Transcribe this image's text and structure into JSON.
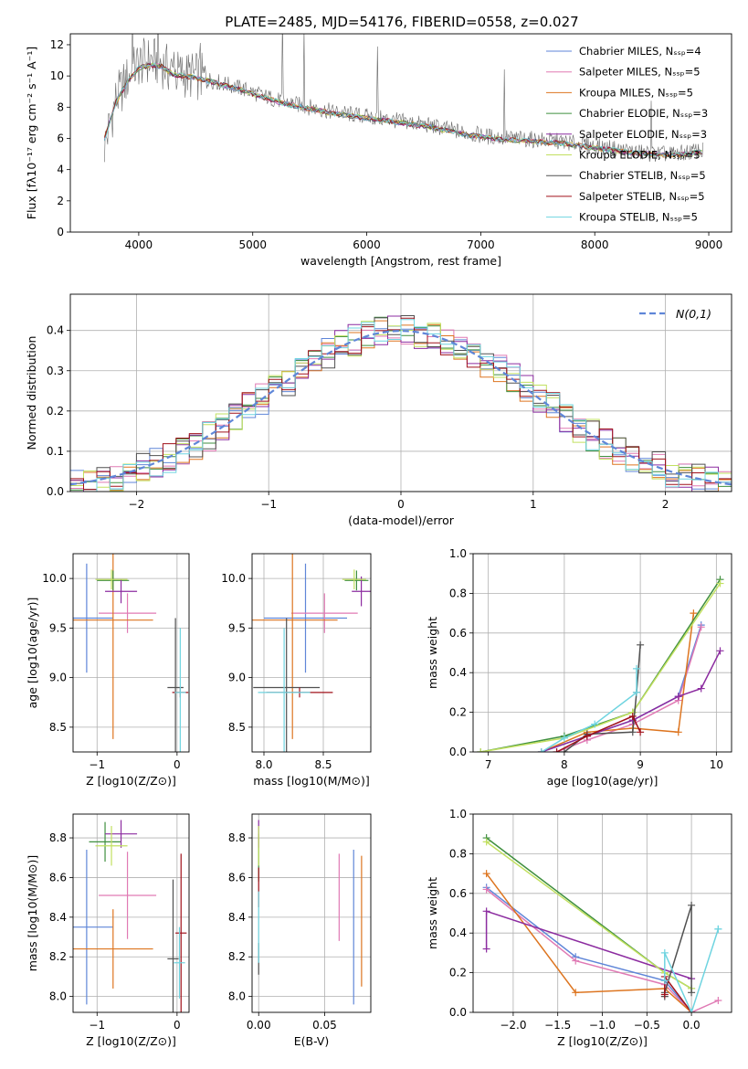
{
  "figure_title": "PLATE=2485, MJD=54176, FIBERID=0558, z=0.027",
  "colors": {
    "chabrier_miles": "#5f86d8",
    "salpeter_miles": "#e07ab4",
    "kroupa_miles": "#dd7520",
    "chabrier_elodie": "#3f8f3f",
    "salpeter_elodie": "#8c2ca0",
    "kroupa_elodie": "#c2e060",
    "chabrier_stelib": "#505050",
    "salpeter_stelib": "#a0101a",
    "kroupa_stelib": "#6fd4e0",
    "normal_curve": "#5f86d8",
    "grid": "#b0b0b0"
  },
  "chart_data": [
    {
      "id": "spectrum",
      "type": "line",
      "xlabel": "wavelength [Angstrom, rest frame]",
      "ylabel": "Flux [fλ10⁻¹⁷ erg cm⁻² s⁻¹ A⁻¹]",
      "xlim": [
        3400,
        9200
      ],
      "ylim": [
        0,
        12.7
      ],
      "xticks": [
        4000,
        5000,
        6000,
        7000,
        8000,
        9000
      ],
      "yticks": [
        0,
        2,
        4,
        6,
        8,
        10,
        12
      ],
      "grid": false,
      "legend_position": "top-right",
      "legend": [
        "Chabrier MILES, N_SSP=4",
        "Salpeter MILES, N_SSP=5",
        "Kroupa MILES, N_SSP=5",
        "Chabrier ELODIE, N_SSP=3",
        "Salpeter ELODIE, N_SSP=3",
        "Kroupa ELODIE, N_SSP=3",
        "Chabrier STELIB, N_SSP=5",
        "Salpeter STELIB, N_SSP=5",
        "Kroupa STELIB, N_SSP=5"
      ],
      "data_curve": {
        "x": [
          3700,
          3800,
          3900,
          4000,
          4100,
          4200,
          4300,
          4500,
          4700,
          4900,
          5100,
          5300,
          5500,
          5700,
          5900,
          6100,
          6300,
          6500,
          6700,
          6900,
          7100,
          7300,
          7500,
          7700,
          7900,
          8100,
          8300,
          8500,
          8700,
          8900
        ],
        "y": [
          5.5,
          8.5,
          9.8,
          10.8,
          11.0,
          10.8,
          10.2,
          10.0,
          9.6,
          9.2,
          8.7,
          8.3,
          8.0,
          7.7,
          7.5,
          7.3,
          7.1,
          6.9,
          6.6,
          6.3,
          6.1,
          6.0,
          5.9,
          5.8,
          5.6,
          5.4,
          5.2,
          5.0,
          5.0,
          5.2
        ]
      },
      "model_curve": {
        "x": [
          3700,
          3800,
          3900,
          4000,
          4100,
          4200,
          4300,
          4500,
          4700,
          4900,
          5100,
          5300,
          5500,
          5700,
          5900,
          6100,
          6300,
          6500,
          6700,
          6900,
          7100,
          7300,
          7500,
          7700,
          7900,
          8100,
          8300,
          8500,
          8700,
          8900
        ],
        "y": [
          6.0,
          8.3,
          9.6,
          10.5,
          10.7,
          10.6,
          10.1,
          9.9,
          9.5,
          9.1,
          8.6,
          8.2,
          7.9,
          7.6,
          7.4,
          7.2,
          7.0,
          6.8,
          6.5,
          6.2,
          6.0,
          5.9,
          5.8,
          5.7,
          5.5,
          5.3,
          5.1,
          5.0,
          4.9,
          5.1
        ]
      }
    },
    {
      "id": "residuals",
      "type": "line",
      "xlabel": "(data-model)/error",
      "ylabel": "Normed distribution",
      "xlim": [
        -2.5,
        2.5
      ],
      "ylim": [
        0,
        0.49
      ],
      "xticks": [
        -2,
        -1,
        0,
        1,
        2
      ],
      "yticks": [
        0.0,
        0.1,
        0.2,
        0.3,
        0.4
      ],
      "grid": true,
      "legend_position": "top-right",
      "legend": [
        "N(0,1)"
      ]
    },
    {
      "id": "age_vs_Z",
      "type": "scatter",
      "xlabel": "Z [log10(Z/Z⊙)]",
      "ylabel": "age  [log10(age/yr)]",
      "xlim": [
        -1.3,
        0.15
      ],
      "ylim": [
        8.25,
        10.25
      ],
      "xticks": [
        -1,
        0
      ],
      "yticks": [
        8.5,
        9.0,
        9.5,
        10.0
      ],
      "grid": true,
      "points": [
        {
          "x": -1.13,
          "y": 9.6,
          "xerr": 0.33,
          "yerr": 0.55,
          "c": "chabrier_miles"
        },
        {
          "x": -0.62,
          "y": 9.65,
          "xerr": 0.36,
          "yerr": 0.2,
          "c": "salpeter_miles"
        },
        {
          "x": -0.8,
          "y": 9.58,
          "xerr": 0.5,
          "yerr": 1.2,
          "c": "kroupa_miles"
        },
        {
          "x": -0.8,
          "y": 9.98,
          "xerr": 0.2,
          "yerr": 0.1,
          "c": "chabrier_elodie"
        },
        {
          "x": -0.7,
          "y": 9.87,
          "xerr": 0.2,
          "yerr": 0.12,
          "c": "salpeter_elodie"
        },
        {
          "x": -0.82,
          "y": 9.99,
          "xerr": 0.2,
          "yerr": 0.1,
          "c": "kroupa_elodie"
        },
        {
          "x": -0.02,
          "y": 8.9,
          "xerr": 0.1,
          "yerr": 0.7,
          "c": "chabrier_stelib"
        },
        {
          "x": 0.04,
          "y": 8.85,
          "xerr": 0.1,
          "yerr": 0.05,
          "c": "salpeter_stelib"
        },
        {
          "x": 0.04,
          "y": 8.85,
          "xerr": 0.07,
          "yerr": 0.65,
          "c": "kroupa_stelib"
        }
      ]
    },
    {
      "id": "age_vs_mass",
      "type": "scatter",
      "xlabel": "mass [log10(M/M⊙)]",
      "ylabel": "",
      "xlim": [
        7.9,
        8.9
      ],
      "ylim": [
        8.25,
        10.25
      ],
      "xticks": [
        8.0,
        8.5
      ],
      "yticks": [
        8.5,
        9.0,
        9.5,
        10.0
      ],
      "grid": true,
      "points": [
        {
          "x": 8.35,
          "y": 9.6,
          "xerr": 0.35,
          "yerr": 0.55,
          "c": "chabrier_miles"
        },
        {
          "x": 8.51,
          "y": 9.65,
          "xerr": 0.28,
          "yerr": 0.2,
          "c": "salpeter_miles"
        },
        {
          "x": 8.24,
          "y": 9.58,
          "xerr": 0.38,
          "yerr": 1.2,
          "c": "kroupa_miles"
        },
        {
          "x": 8.78,
          "y": 9.98,
          "xerr": 0.1,
          "yerr": 0.1,
          "c": "chabrier_elodie"
        },
        {
          "x": 8.82,
          "y": 9.87,
          "xerr": 0.08,
          "yerr": 0.15,
          "c": "salpeter_elodie"
        },
        {
          "x": 8.76,
          "y": 9.99,
          "xerr": 0.1,
          "yerr": 0.1,
          "c": "kroupa_elodie"
        },
        {
          "x": 8.19,
          "y": 8.9,
          "xerr": 0.28,
          "yerr": 0.7,
          "c": "chabrier_stelib"
        },
        {
          "x": 8.3,
          "y": 8.85,
          "xerr": 0.28,
          "yerr": 0.05,
          "c": "salpeter_stelib"
        },
        {
          "x": 8.17,
          "y": 8.85,
          "xerr": 0.22,
          "yerr": 0.65,
          "c": "kroupa_stelib"
        }
      ]
    },
    {
      "id": "weight_vs_age",
      "type": "line",
      "xlabel": "age  [log10(age/yr)]",
      "ylabel": "mass weight",
      "xlim": [
        6.8,
        10.2
      ],
      "ylim": [
        0,
        1.0
      ],
      "xticks": [
        7,
        8,
        9,
        10
      ],
      "yticks": [
        0.0,
        0.2,
        0.4,
        0.6,
        0.8,
        1.0
      ],
      "grid": true,
      "series": [
        {
          "c": "chabrier_miles",
          "x": [
            7.7,
            8.3,
            8.9,
            9.5,
            9.8
          ],
          "y": [
            0.0,
            0.08,
            0.16,
            0.28,
            0.64
          ]
        },
        {
          "c": "salpeter_miles",
          "x": [
            7.9,
            8.3,
            8.9,
            9.5,
            9.8
          ],
          "y": [
            0.0,
            0.06,
            0.14,
            0.26,
            0.63
          ]
        },
        {
          "c": "kroupa_miles",
          "x": [
            7.7,
            8.3,
            8.9,
            9.5,
            9.7
          ],
          "y": [
            0.0,
            0.1,
            0.12,
            0.1,
            0.7
          ]
        },
        {
          "c": "chabrier_elodie",
          "x": [
            6.9,
            8.0,
            8.9,
            10.05
          ],
          "y": [
            0.0,
            0.08,
            0.2,
            0.87
          ]
        },
        {
          "c": "salpeter_elodie",
          "x": [
            7.7,
            8.3,
            8.9,
            9.5,
            9.8,
            10.05
          ],
          "y": [
            0.0,
            0.08,
            0.16,
            0.28,
            0.32,
            0.51
          ]
        },
        {
          "c": "kroupa_elodie",
          "x": [
            6.9,
            8.0,
            8.9,
            10.05
          ],
          "y": [
            0.0,
            0.07,
            0.2,
            0.85
          ]
        },
        {
          "c": "chabrier_stelib",
          "x": [
            8.0,
            8.3,
            8.9,
            8.95,
            9.0
          ],
          "y": [
            0.0,
            0.09,
            0.1,
            0.3,
            0.54
          ]
        },
        {
          "c": "salpeter_stelib",
          "x": [
            7.9,
            8.3,
            8.9,
            9.0
          ],
          "y": [
            0.0,
            0.08,
            0.18,
            0.1
          ]
        },
        {
          "c": "kroupa_stelib",
          "x": [
            7.7,
            8.0,
            8.4,
            8.95,
            8.95
          ],
          "y": [
            0.0,
            0.07,
            0.14,
            0.3,
            0.42
          ]
        }
      ]
    },
    {
      "id": "mass_vs_Z",
      "type": "scatter",
      "xlabel": "Z [log10(Z/Z⊙)]",
      "ylabel": "mass [log10(M/M⊙)]",
      "xlim": [
        -1.3,
        0.15
      ],
      "ylim": [
        7.92,
        8.92
      ],
      "xticks": [
        -1,
        0
      ],
      "yticks": [
        8.0,
        8.2,
        8.4,
        8.6,
        8.8
      ],
      "grid": true,
      "points": [
        {
          "x": -1.13,
          "y": 8.35,
          "xerr": 0.33,
          "yerr": 0.39,
          "c": "chabrier_miles"
        },
        {
          "x": -0.62,
          "y": 8.51,
          "xerr": 0.36,
          "yerr": 0.22,
          "c": "salpeter_miles"
        },
        {
          "x": -0.8,
          "y": 8.24,
          "xerr": 0.5,
          "yerr": 0.2,
          "c": "kroupa_miles"
        },
        {
          "x": -0.9,
          "y": 8.78,
          "xerr": 0.2,
          "yerr": 0.1,
          "c": "chabrier_elodie"
        },
        {
          "x": -0.7,
          "y": 8.82,
          "xerr": 0.2,
          "yerr": 0.07,
          "c": "salpeter_elodie"
        },
        {
          "x": -0.82,
          "y": 8.76,
          "xerr": 0.2,
          "yerr": 0.1,
          "c": "kroupa_elodie"
        },
        {
          "x": -0.05,
          "y": 8.19,
          "xerr": 0.07,
          "yerr": 0.4,
          "c": "chabrier_stelib"
        },
        {
          "x": 0.05,
          "y": 8.32,
          "xerr": 0.07,
          "yerr": 0.4,
          "c": "salpeter_stelib"
        },
        {
          "x": 0.03,
          "y": 8.17,
          "xerr": 0.07,
          "yerr": 0.18,
          "c": "kroupa_stelib"
        }
      ]
    },
    {
      "id": "mass_vs_ebv",
      "type": "scatter",
      "xlabel": "E(B-V)",
      "ylabel": "",
      "xlim": [
        -0.005,
        0.085
      ],
      "ylim": [
        7.92,
        8.92
      ],
      "xticks": [
        0.0,
        0.05
      ],
      "yticks": [
        8.0,
        8.2,
        8.4,
        8.6,
        8.8
      ],
      "grid": true,
      "points": [
        {
          "x": 0.072,
          "y": 8.35,
          "xerr": 0,
          "yerr": 0.39,
          "c": "chabrier_miles"
        },
        {
          "x": 0.061,
          "y": 8.5,
          "xerr": 0,
          "yerr": 0.22,
          "c": "salpeter_miles"
        },
        {
          "x": 0.078,
          "y": 8.38,
          "xerr": 0,
          "yerr": 0.33,
          "c": "kroupa_miles"
        },
        {
          "x": 0.0,
          "y": 8.7,
          "xerr": 0,
          "yerr": 0.12,
          "c": "chabrier_elodie"
        },
        {
          "x": 0.0,
          "y": 8.82,
          "xerr": 0,
          "yerr": 0.07,
          "c": "salpeter_elodie"
        },
        {
          "x": 0.0,
          "y": 8.76,
          "xerr": 0,
          "yerr": 0.1,
          "c": "kroupa_elodie"
        },
        {
          "x": 0.0,
          "y": 8.19,
          "xerr": 0,
          "yerr": 0.08,
          "c": "chabrier_stelib"
        },
        {
          "x": 0.0,
          "y": 8.55,
          "xerr": 0,
          "yerr": 0.1,
          "c": "salpeter_stelib"
        },
        {
          "x": 0.0,
          "y": 8.35,
          "xerr": 0,
          "yerr": 0.18,
          "c": "kroupa_stelib"
        }
      ]
    },
    {
      "id": "weight_vs_Z",
      "type": "line",
      "xlabel": "Z [log10(Z/Z⊙)]",
      "ylabel": "mass weight",
      "xlim": [
        -2.45,
        0.45
      ],
      "ylim": [
        0,
        1.0
      ],
      "xticks": [
        -2.0,
        -1.5,
        -1.0,
        -0.5,
        0.0
      ],
      "yticks": [
        0.0,
        0.2,
        0.4,
        0.6,
        0.8,
        1.0
      ],
      "grid": true,
      "series": [
        {
          "c": "chabrier_miles",
          "x": [
            -2.3,
            -1.3,
            -0.3,
            0.0
          ],
          "y": [
            0.63,
            0.28,
            0.16,
            0.0
          ]
        },
        {
          "c": "salpeter_miles",
          "x": [
            -2.3,
            -1.3,
            -0.3,
            0.0,
            0.3
          ],
          "y": [
            0.62,
            0.26,
            0.14,
            0.0,
            0.06
          ]
        },
        {
          "c": "kroupa_miles",
          "x": [
            -2.3,
            -1.3,
            -0.3,
            0.0
          ],
          "y": [
            0.7,
            0.1,
            0.12,
            0.0
          ]
        },
        {
          "c": "chabrier_elodie",
          "x": [
            -2.3,
            -0.3,
            0.0
          ],
          "y": [
            0.88,
            0.2,
            0.12
          ]
        },
        {
          "c": "salpeter_elodie",
          "x": [
            -2.3,
            -2.3,
            0.0
          ],
          "y": [
            0.32,
            0.51,
            0.17
          ]
        },
        {
          "c": "kroupa_elodie",
          "x": [
            -2.3,
            -0.3,
            0.0
          ],
          "y": [
            0.86,
            0.2,
            0.12
          ]
        },
        {
          "c": "chabrier_stelib",
          "x": [
            -0.3,
            -0.3,
            0.0,
            0.0
          ],
          "y": [
            0.08,
            0.1,
            0.54,
            0.1
          ]
        },
        {
          "c": "salpeter_stelib",
          "x": [
            -0.3,
            -0.3,
            0.0
          ],
          "y": [
            0.09,
            0.18,
            0.0
          ]
        },
        {
          "c": "kroupa_stelib",
          "x": [
            -0.3,
            -0.3,
            0.0,
            0.3,
            0.3
          ],
          "y": [
            0.16,
            0.3,
            0.0,
            0.42,
            0.42
          ]
        }
      ]
    }
  ]
}
